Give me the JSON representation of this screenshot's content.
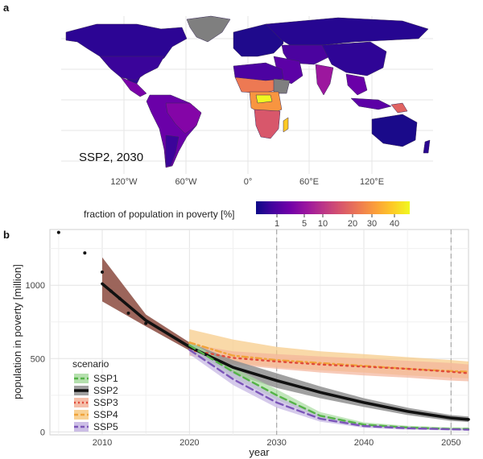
{
  "panel_a": {
    "label": "a",
    "map_annotation": "SSP2, 2030",
    "lon_ticks": [
      "120°W",
      "60°W",
      "0°",
      "60°E",
      "120°E"
    ],
    "colorbar": {
      "title": "fraction of population in poverty [%]",
      "ticks": [
        "1",
        "5",
        "10",
        "20",
        "30",
        "40"
      ],
      "colors": [
        "#0d0887",
        "#46039f",
        "#7201a8",
        "#9c179e",
        "#bd3786",
        "#d8576b",
        "#ed7953",
        "#fb9f3a",
        "#fdca26",
        "#f0f921"
      ]
    }
  },
  "panel_b": {
    "label": "b",
    "legend_title": "scenario"
  },
  "chart_data": {
    "type": "line",
    "xlabel": "year",
    "ylabel": "population in poverty [million]",
    "xlim": [
      2004,
      2052
    ],
    "ylim": [
      -20,
      1380
    ],
    "x_ticks": [
      2010,
      2020,
      2030,
      2040,
      2050
    ],
    "y_ticks": [
      0,
      500,
      1000
    ],
    "vlines": [
      2030,
      2050
    ],
    "grid": true,
    "legend_position": "bottom-left",
    "historical": {
      "x": [
        2005,
        2008,
        2010,
        2011,
        2012,
        2013,
        2015
      ],
      "y": [
        1360,
        1220,
        1090,
        960,
        910,
        810,
        740
      ]
    },
    "series": [
      {
        "name": "SSP1",
        "color": "#55b348",
        "band": "#a8dba0",
        "dash": "8,5",
        "width": 2.4,
        "x": [
          2020,
          2025,
          2030,
          2035,
          2040,
          2045,
          2050,
          2052
        ],
        "y": [
          590,
          410,
          250,
          110,
          50,
          30,
          20,
          20
        ],
        "lower": [
          560,
          370,
          220,
          95,
          38,
          22,
          12,
          12
        ],
        "upper": [
          620,
          440,
          290,
          135,
          65,
          42,
          30,
          30
        ]
      },
      {
        "name": "SSP2",
        "color": "#111111",
        "band": "#8f8f8f",
        "dash": "",
        "width": 3.6,
        "x": [
          2010,
          2015,
          2020,
          2025,
          2030,
          2035,
          2040,
          2045,
          2050,
          2052
        ],
        "y": [
          1010,
          760,
          580,
          440,
          350,
          270,
          200,
          140,
          95,
          85
        ],
        "lower": [
          890,
          720,
          555,
          395,
          300,
          230,
          170,
          115,
          75,
          68
        ],
        "upper": [
          1190,
          800,
          610,
          490,
          400,
          310,
          230,
          165,
          115,
          105
        ]
      },
      {
        "name": "SSP3",
        "color": "#e04a3a",
        "band": "#f3b39a",
        "dash": "2,5",
        "width": 2.4,
        "x": [
          2020,
          2025,
          2030,
          2035,
          2040,
          2045,
          2050,
          2052
        ],
        "y": [
          560,
          505,
          480,
          460,
          445,
          430,
          410,
          400
        ],
        "lower": [
          520,
          460,
          430,
          405,
          385,
          370,
          350,
          345
        ],
        "upper": [
          600,
          550,
          530,
          515,
          500,
          485,
          470,
          460
        ]
      },
      {
        "name": "SSP4",
        "color": "#f0a33a",
        "band": "#f7c983",
        "dash": "7,4,2,4",
        "width": 2.4,
        "x": [
          2020,
          2025,
          2030,
          2035,
          2040,
          2045,
          2050,
          2052
        ],
        "y": [
          610,
          520,
          490,
          470,
          450,
          430,
          415,
          410
        ],
        "lower": [
          570,
          470,
          440,
          420,
          405,
          385,
          370,
          365
        ],
        "upper": [
          700,
          630,
          580,
          550,
          530,
          510,
          490,
          480
        ]
      },
      {
        "name": "SSP5",
        "color": "#7b55b8",
        "band": "#c3b3e2",
        "dash": "9,5",
        "width": 2.4,
        "x": [
          2020,
          2025,
          2030,
          2035,
          2040,
          2045,
          2050,
          2052
        ],
        "y": [
          560,
          360,
          200,
          90,
          40,
          25,
          18,
          15
        ],
        "lower": [
          530,
          320,
          165,
          70,
          28,
          15,
          10,
          8
        ],
        "upper": [
          600,
          410,
          240,
          115,
          55,
          35,
          25,
          22
        ]
      }
    ]
  }
}
